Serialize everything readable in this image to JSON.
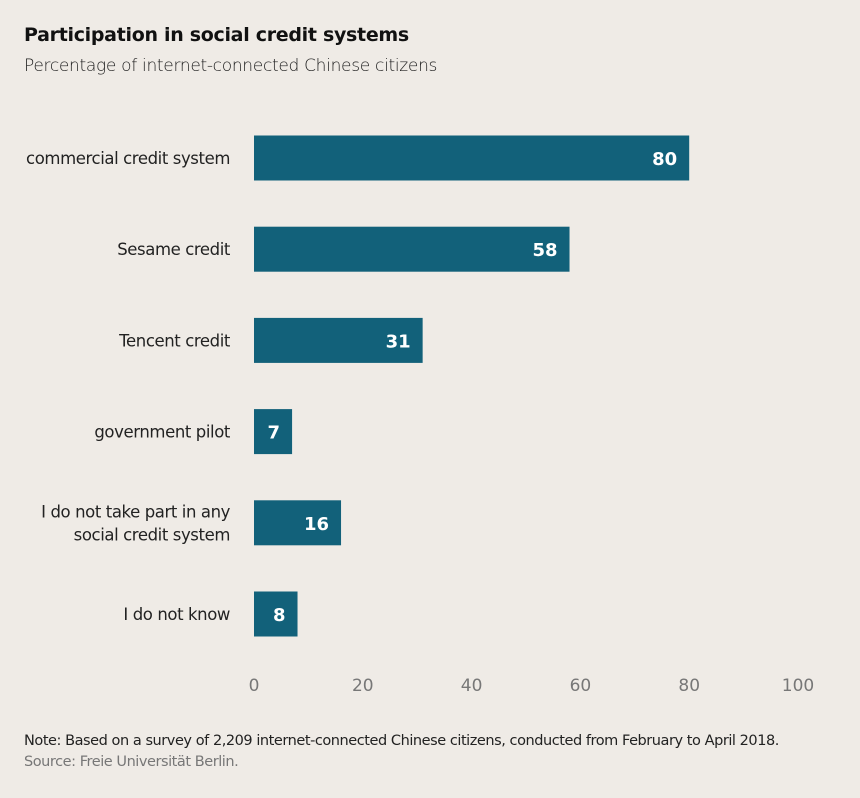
{
  "chart_data": {
    "type": "bar",
    "orientation": "horizontal",
    "title": "Participation in social credit systems",
    "subtitle": "Percentage of internet-connected Chinese citizens",
    "categories": [
      [
        "commercial credit system"
      ],
      [
        "Sesame credit"
      ],
      [
        "Tencent credit"
      ],
      [
        "government pilot"
      ],
      [
        "I do not take part in any",
        "social credit system"
      ],
      [
        "I do not know"
      ]
    ],
    "values": [
      80,
      58,
      31,
      7,
      16,
      8
    ],
    "data_labels": [
      "80",
      "58",
      "31",
      "7",
      "16",
      "8"
    ],
    "xlabel": "",
    "ylabel": "",
    "xlim": [
      0,
      100
    ],
    "xticks": [
      0,
      20,
      40,
      60,
      80,
      100
    ],
    "xtick_labels": [
      "0",
      "20",
      "40",
      "60",
      "80",
      "100"
    ],
    "grid": false,
    "legend": "none",
    "bar_color": "#12617a",
    "label_color": "#ffffff"
  },
  "footer": {
    "note": "Note: Based on a survey of 2,209 internet-connected Chinese citizens, conducted from February to April 2018.",
    "source": "Source: Freie Universität Berlin."
  }
}
